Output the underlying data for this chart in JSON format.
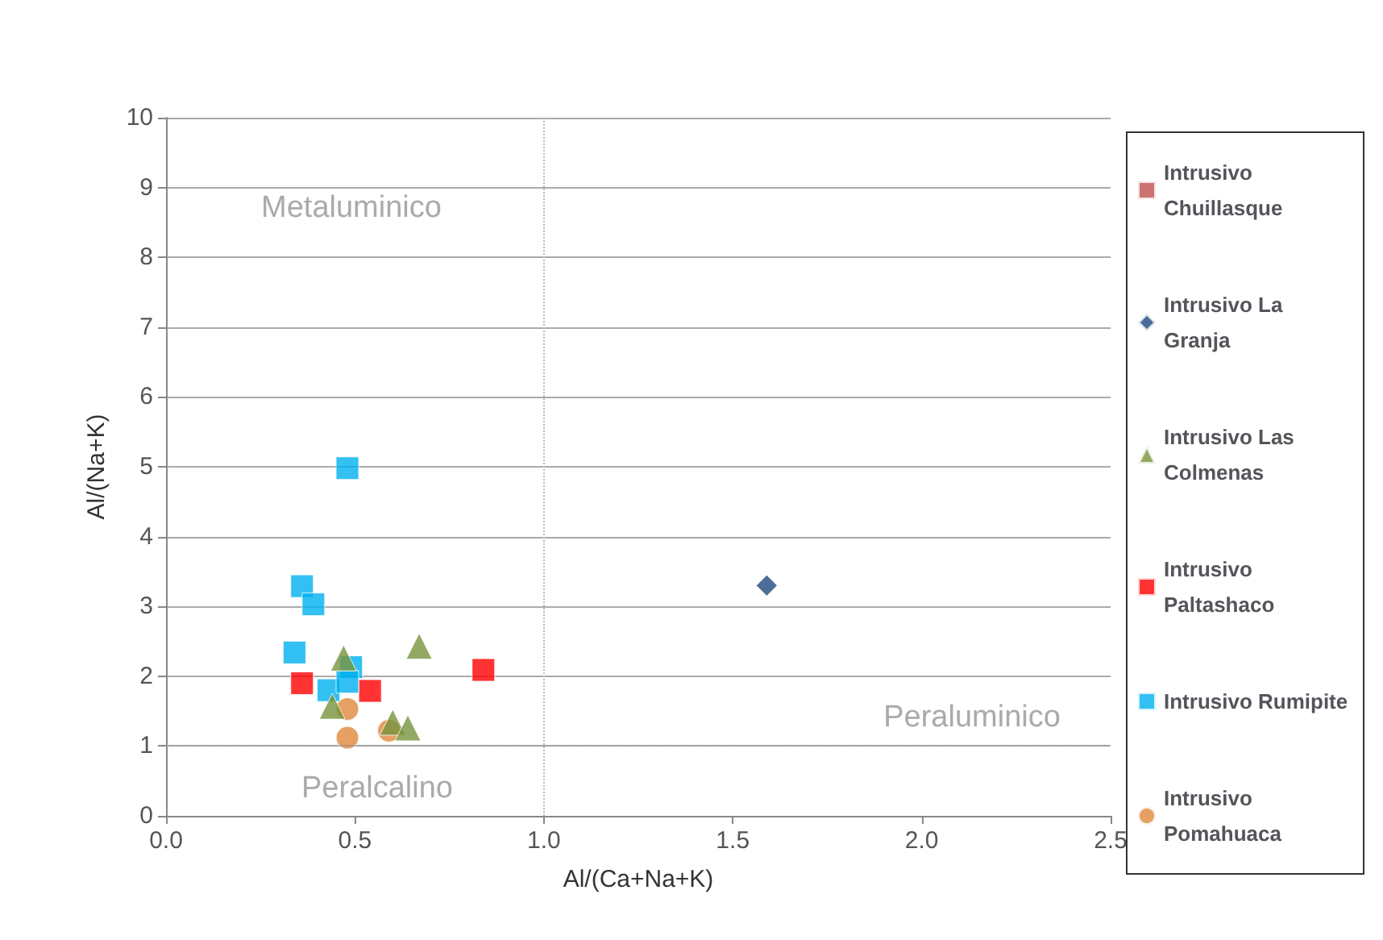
{
  "chart_data": {
    "type": "scatter",
    "xlabel": "Al/(Ca+Na+K)",
    "ylabel": "Al/(Na+K)",
    "xlim": [
      0,
      2.5
    ],
    "xticks": [
      {
        "value": 0,
        "label": "0.0"
      },
      {
        "value": 0.5,
        "label": "0.5"
      },
      {
        "value": 1,
        "label": "1.0"
      },
      {
        "value": 1.5,
        "label": "1.5"
      },
      {
        "value": 2,
        "label": "2.0"
      },
      {
        "value": 2.5,
        "label": "2.5"
      }
    ],
    "ylim": [
      0,
      10
    ],
    "yticks": [
      0,
      1,
      2,
      3,
      4,
      5,
      6,
      7,
      8,
      9,
      10
    ],
    "grid": "y",
    "legend": "right",
    "ref_lines": [
      {
        "axis": "x",
        "value": 1,
        "line_style": "dotted",
        "color": "#bbbbbb"
      },
      {
        "axis": "y",
        "value": 1,
        "line_style": "dotted",
        "color": "#999999"
      }
    ],
    "annotations": [
      "Metaluminico",
      "Peraluminico",
      "Peralcalino"
    ],
    "series": [
      {
        "name": "Intrusivo Chuillasque",
        "color": "#c0504d",
        "marker": "square"
      },
      {
        "name": "Intrusivo La Granja",
        "color": "#1f497d",
        "marker": "diamond",
        "x": [
          1.59
        ],
        "values": [
          3.3
        ]
      },
      {
        "name": "Intrusivo Las Colmenas",
        "color": "#77933c",
        "marker": "triangle",
        "x": [
          0.47,
          0.67,
          0.44,
          0.6,
          0.64
        ],
        "values": [
          2.26,
          2.43,
          1.57,
          1.34,
          1.26
        ]
      },
      {
        "name": "Intrusivo Paltashaco",
        "color": "#ff0000",
        "marker": "square",
        "x": [
          0.36,
          0.54,
          0.84
        ],
        "values": [
          1.9,
          1.79,
          2.09
        ]
      },
      {
        "name": "Intrusivo Rumipite",
        "color": "#00b0f0",
        "marker": "square",
        "x": [
          0.48,
          0.36,
          0.39,
          0.34,
          0.49,
          0.43,
          0.48
        ],
        "values": [
          4.98,
          3.29,
          3.03,
          2.34,
          2.13,
          1.8,
          1.92
        ]
      },
      {
        "name": "Intrusivo Pomahuaca",
        "color": "#e0883c",
        "marker": "circle",
        "x": [
          0.48,
          0.48,
          0.59
        ],
        "values": [
          1.53,
          1.12,
          1.22
        ]
      }
    ]
  }
}
